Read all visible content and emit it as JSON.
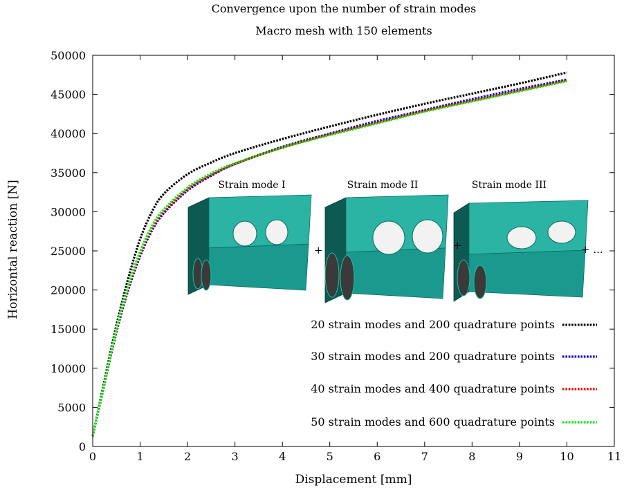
{
  "chart_data": {
    "type": "line",
    "title": "Convergence upon the number of strain modes",
    "subtitle": "Macro mesh with 150 elements",
    "xlabel": "Displacement [mm]",
    "ylabel": "Horizontal reaction [N]",
    "xlim": [
      0,
      11
    ],
    "ylim": [
      0,
      50000
    ],
    "xticks": [
      "0",
      "1",
      "2",
      "3",
      "4",
      "5",
      "6",
      "7",
      "8",
      "9",
      "10",
      "11"
    ],
    "yticks": [
      "0",
      "5000",
      "10000",
      "15000",
      "20000",
      "25000",
      "30000",
      "35000",
      "40000",
      "45000",
      "50000"
    ],
    "grid": false,
    "legend_position": "bottom-right",
    "series": [
      {
        "name": "20 strain modes and 200 quadrature points",
        "color": "#000000",
        "x": [
          0,
          0.25,
          0.5,
          0.75,
          1.0,
          1.25,
          1.5,
          2.0,
          2.5,
          3.0,
          4.0,
          5.0,
          6.0,
          7.0,
          8.0,
          9.0,
          10.0
        ],
        "y": [
          1300,
          8500,
          15500,
          21500,
          26500,
          30000,
          32300,
          34800,
          36300,
          37500,
          39300,
          40900,
          42400,
          43800,
          45100,
          46400,
          47800
        ]
      },
      {
        "name": "30 strain modes and 200 quadrature points",
        "color": "#0000cc",
        "x": [
          0,
          0.25,
          0.5,
          0.75,
          1.0,
          1.25,
          1.5,
          2.0,
          2.5,
          3.0,
          4.0,
          5.0,
          6.0,
          7.0,
          8.0,
          9.0,
          10.0
        ],
        "y": [
          1300,
          8000,
          14600,
          20000,
          24300,
          27600,
          29800,
          32700,
          34600,
          36100,
          38300,
          40000,
          41600,
          43000,
          44400,
          45700,
          46900
        ]
      },
      {
        "name": "40 strain modes and 400 quadrature points",
        "color": "#ee0000",
        "x": [
          0,
          0.25,
          0.5,
          0.75,
          1.0,
          1.25,
          1.5,
          2.0,
          2.5,
          3.0,
          4.0,
          5.0,
          6.0,
          7.0,
          8.0,
          9.0,
          10.0
        ],
        "y": [
          1300,
          8100,
          14800,
          20300,
          24600,
          27900,
          30000,
          32900,
          34700,
          36100,
          38200,
          39900,
          41400,
          42900,
          44200,
          45500,
          46800
        ]
      },
      {
        "name": "50 strain modes and 600 quadrature points",
        "color": "#00ee00",
        "x": [
          0,
          0.25,
          0.5,
          0.75,
          1.0,
          1.25,
          1.5,
          2.0,
          2.5,
          3.0,
          4.0,
          5.0,
          6.0,
          7.0,
          8.0,
          9.0,
          10.0
        ],
        "y": [
          1300,
          8200,
          15000,
          20600,
          24900,
          28200,
          30300,
          33100,
          34900,
          36200,
          38200,
          39800,
          41300,
          42800,
          44100,
          45400,
          46700
        ]
      }
    ],
    "inset": {
      "labels": [
        "Strain mode I",
        "Strain mode II",
        "Strain mode III"
      ],
      "separators": [
        "+",
        "+",
        "+ ..."
      ],
      "block_color": "#1a9a8e"
    }
  }
}
